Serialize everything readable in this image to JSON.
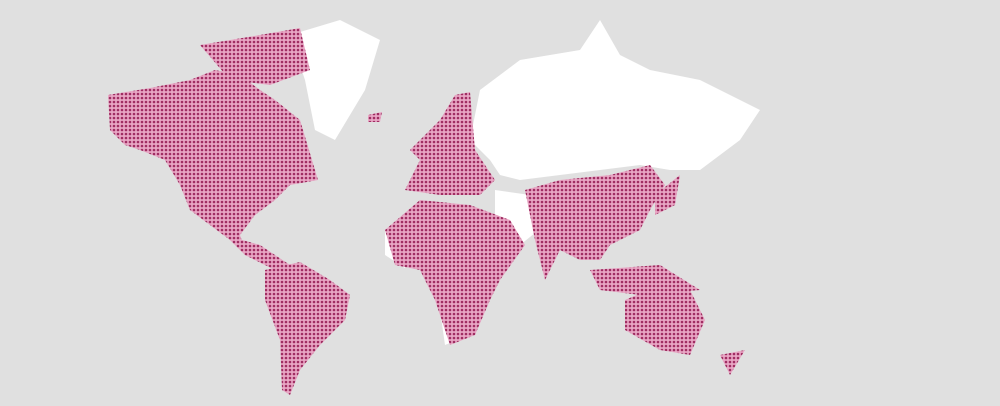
{
  "map": {
    "colors": {
      "background": "#e0e0e0",
      "unhighlighted_land": "#ffffff",
      "highlighted_dot": "#a02d62",
      "highlighted_base": "#e8a6c4"
    }
  }
}
